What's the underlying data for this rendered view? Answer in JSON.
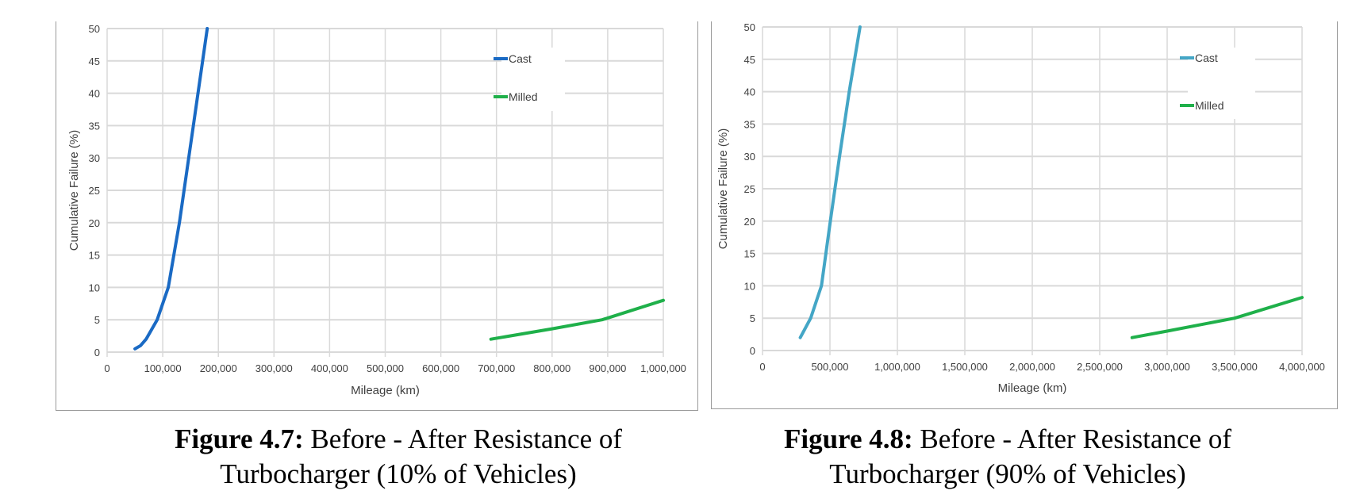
{
  "chart_data": [
    {
      "type": "line",
      "title": "",
      "xlabel": "Mileage (km)",
      "ylabel": "Cumulative Failure (%)",
      "xlim": [
        0,
        1000000
      ],
      "ylim": [
        0,
        50
      ],
      "xticks": [
        0,
        100000,
        200000,
        300000,
        400000,
        500000,
        600000,
        700000,
        800000,
        900000,
        1000000
      ],
      "xtick_labels": [
        "0",
        "100,000",
        "200,000",
        "300,000",
        "400,000",
        "500,000",
        "600,000",
        "700,000",
        "800,000",
        "900,000",
        "1,000,000"
      ],
      "yticks": [
        0,
        5,
        10,
        15,
        20,
        25,
        30,
        35,
        40,
        45,
        50
      ],
      "ytick_labels": [
        "0",
        "5",
        "10",
        "15",
        "20",
        "25",
        "30",
        "35",
        "40",
        "45",
        "50"
      ],
      "grid": true,
      "legend_position": "top-right",
      "series": [
        {
          "name": "Cast",
          "color": "#1a6ac4",
          "x": [
            50000,
            60000,
            70000,
            90000,
            110000,
            130000,
            155000,
            180000
          ],
          "y": [
            0.5,
            1,
            2,
            5,
            10,
            20,
            35,
            50
          ]
        },
        {
          "name": "Milled",
          "color": "#1fb04a",
          "x": [
            690000,
            800000,
            890000,
            1000000
          ],
          "y": [
            2,
            3.6,
            5,
            8
          ]
        }
      ],
      "caption": {
        "label": "Figure 4.7:",
        "line1": " Before - After Resistance of",
        "line2": "Turbocharger (10% of Vehicles)"
      }
    },
    {
      "type": "line",
      "title": "",
      "xlabel": "Mileage (km)",
      "ylabel": "Cumulative Failure (%)",
      "xlim": [
        0,
        4000000
      ],
      "ylim": [
        0,
        50
      ],
      "xticks": [
        0,
        500000,
        1000000,
        1500000,
        2000000,
        2500000,
        3000000,
        3500000,
        4000000
      ],
      "xtick_labels": [
        "0",
        "500,000",
        "1,000,000",
        "1,500,000",
        "2,000,000",
        "2,500,000",
        "3,000,000",
        "3,500,000",
        "4,000,000"
      ],
      "yticks": [
        0,
        5,
        10,
        15,
        20,
        25,
        30,
        35,
        40,
        45,
        50
      ],
      "ytick_labels": [
        "0",
        "5",
        "10",
        "15",
        "20",
        "25",
        "30",
        "35",
        "40",
        "45",
        "50"
      ],
      "grid": true,
      "legend_position": "top-right",
      "series": [
        {
          "name": "Cast",
          "color": "#44a6c6",
          "x": [
            280000,
            357000,
            437000,
            503000,
            571000,
            643000,
            723000
          ],
          "y": [
            2,
            5,
            10,
            20,
            30,
            40,
            50
          ]
        },
        {
          "name": "Milled",
          "color": "#1fb04a",
          "x": [
            2740000,
            3000000,
            3500000,
            4000000
          ],
          "y": [
            2,
            3,
            5,
            8.2
          ]
        }
      ],
      "caption": {
        "label": "Figure 4.8:",
        "line1": " Before - After Resistance of",
        "line2": "Turbocharger (90% of Vehicles)"
      }
    }
  ]
}
